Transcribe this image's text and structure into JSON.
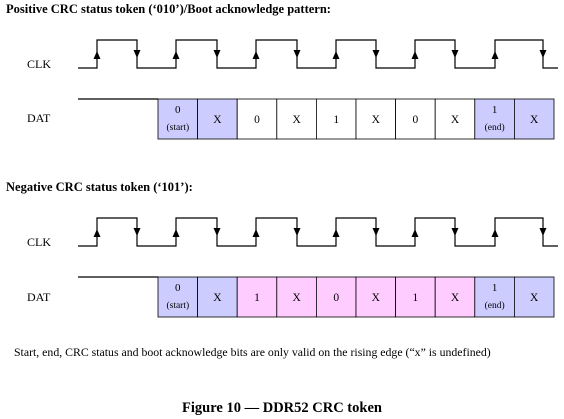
{
  "diagrams": [
    {
      "title": "Positive CRC status token (‘010’)/Boot acknowledge pattern:",
      "clk_label": "CLK",
      "dat_label": "DAT",
      "cells": [
        {
          "main": "0",
          "sub": "(start)",
          "fill": "#ccccff"
        },
        {
          "main": "X",
          "sub": "",
          "fill": "#ccccff"
        },
        {
          "main": "0",
          "sub": "",
          "fill": "#ffffff"
        },
        {
          "main": "X",
          "sub": "",
          "fill": "#ffffff"
        },
        {
          "main": "1",
          "sub": "",
          "fill": "#ffffff"
        },
        {
          "main": "X",
          "sub": "",
          "fill": "#ffffff"
        },
        {
          "main": "0",
          "sub": "",
          "fill": "#ffffff"
        },
        {
          "main": "X",
          "sub": "",
          "fill": "#ffffff"
        },
        {
          "main": "1",
          "sub": "(end)",
          "fill": "#ccccff"
        },
        {
          "main": "X",
          "sub": "",
          "fill": "#ccccff"
        }
      ]
    },
    {
      "title": "Negative CRC status token (‘101’):",
      "clk_label": "CLK",
      "dat_label": "DAT",
      "cells": [
        {
          "main": "0",
          "sub": "(start)",
          "fill": "#ccccff"
        },
        {
          "main": "X",
          "sub": "",
          "fill": "#ccccff"
        },
        {
          "main": "1",
          "sub": "",
          "fill": "#ffccff"
        },
        {
          "main": "X",
          "sub": "",
          "fill": "#ffccff"
        },
        {
          "main": "0",
          "sub": "",
          "fill": "#ffccff"
        },
        {
          "main": "X",
          "sub": "",
          "fill": "#ffccff"
        },
        {
          "main": "1",
          "sub": "",
          "fill": "#ffccff"
        },
        {
          "main": "X",
          "sub": "",
          "fill": "#ffccff"
        },
        {
          "main": "1",
          "sub": "(end)",
          "fill": "#ccccff"
        },
        {
          "main": "X",
          "sub": "",
          "fill": "#ccccff"
        }
      ]
    }
  ],
  "note": "Start, end, CRC status and boot acknowledge bits are only valid on the rising edge (“x” is undefined)",
  "caption": "Figure 10 — DDR52 CRC token"
}
